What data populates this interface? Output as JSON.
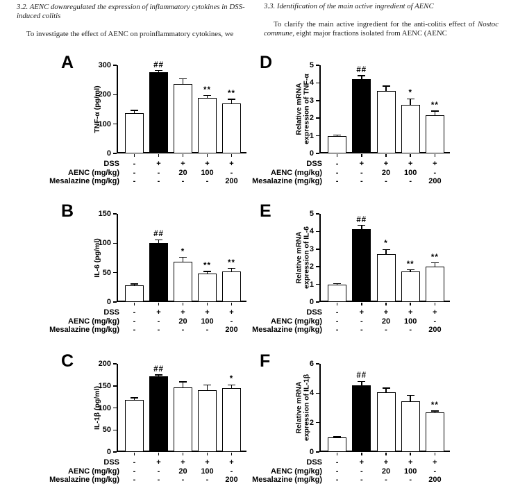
{
  "article": {
    "left": {
      "heading": "3.2.  AENC downregulated the expression of inflammatory cytokines in DSS-induced colitis",
      "paragraph": "To investigate the effect of AENC on proinflammatory cytokines, we"
    },
    "right": {
      "heading": "3.3.  Identification of the main active ingredient of AENC",
      "para_pre": "To clarify the main active ingredient for the anti-colitis effect of ",
      "para_italic": "Nostoc commune,",
      "para_post": " eight major fractions isolated from AENC (AENC"
    }
  },
  "figure": {
    "bar_fill_default": "#ffffff",
    "bar_fill_highlight": "#000000",
    "axis_color": "#000000",
    "group_rows_note": "rows of +/- and doses shown under every panel"
  },
  "chart_data": [
    {
      "panel": "A",
      "type": "bar",
      "ylabel_lines": [
        "TNF-α (pg/ml)"
      ],
      "ylim": [
        0,
        300
      ],
      "yticks": [
        0,
        100,
        200,
        300
      ],
      "values": [
        138,
        277,
        237,
        189,
        170
      ],
      "errors": [
        8,
        5,
        17,
        8,
        14
      ],
      "annotations": [
        "",
        "##",
        "",
        "**",
        "**"
      ],
      "filled": [
        false,
        true,
        false,
        false,
        false
      ],
      "x_rows": [
        {
          "label": "DSS",
          "cells": [
            "-",
            "+",
            "+",
            "+",
            "+"
          ]
        },
        {
          "label": "AENC (mg/kg)",
          "cells": [
            "-",
            "-",
            "20",
            "100",
            "-"
          ]
        },
        {
          "label": "Mesalazine (mg/kg)",
          "cells": [
            "-",
            "-",
            "-",
            "-",
            "200"
          ]
        }
      ]
    },
    {
      "panel": "D",
      "type": "bar",
      "ylabel_lines": [
        "Relative mRNA",
        "expression of TNF-α"
      ],
      "ylim": [
        0,
        5
      ],
      "yticks": [
        0,
        1,
        2,
        3,
        4,
        5
      ],
      "values": [
        1.0,
        4.2,
        3.55,
        2.75,
        2.15
      ],
      "errors": [
        0.05,
        0.2,
        0.27,
        0.35,
        0.25
      ],
      "annotations": [
        "",
        "##",
        "",
        "*",
        "**"
      ],
      "filled": [
        false,
        true,
        false,
        false,
        false
      ],
      "x_rows": [
        {
          "label": "DSS",
          "cells": [
            "-",
            "+",
            "+",
            "+",
            "+"
          ]
        },
        {
          "label": "AENC (mg/kg)",
          "cells": [
            "-",
            "-",
            "20",
            "100",
            "-"
          ]
        },
        {
          "label": "Mesalazine (mg/kg)",
          "cells": [
            "-",
            "-",
            "-",
            "-",
            "200"
          ]
        }
      ]
    },
    {
      "panel": "B",
      "type": "bar",
      "ylabel_lines": [
        "IL-6 (pg/ml)"
      ],
      "ylim": [
        0,
        150
      ],
      "yticks": [
        0,
        50,
        100,
        150
      ],
      "values": [
        28,
        100,
        68,
        48,
        52
      ],
      "errors": [
        3,
        6,
        8,
        4,
        5
      ],
      "annotations": [
        "",
        "##",
        "*",
        "**",
        "**"
      ],
      "filled": [
        false,
        true,
        false,
        false,
        false
      ],
      "x_rows": [
        {
          "label": "DSS",
          "cells": [
            "-",
            "+",
            "+",
            "+",
            "+"
          ]
        },
        {
          "label": "AENC (mg/kg)",
          "cells": [
            "-",
            "-",
            "20",
            "100",
            "-"
          ]
        },
        {
          "label": "Mesalazine (mg/kg)",
          "cells": [
            "-",
            "-",
            "-",
            "-",
            "200"
          ]
        }
      ]
    },
    {
      "panel": "E",
      "type": "bar",
      "ylabel_lines": [
        "Relative mRNA",
        "expression of IL-6"
      ],
      "ylim": [
        0,
        5
      ],
      "yticks": [
        0,
        1,
        2,
        3,
        4,
        5
      ],
      "values": [
        1.0,
        4.15,
        2.7,
        1.75,
        2.0
      ],
      "errors": [
        0.04,
        0.2,
        0.28,
        0.08,
        0.22
      ],
      "annotations": [
        "",
        "##",
        "*",
        "**",
        "**"
      ],
      "filled": [
        false,
        true,
        false,
        false,
        false
      ],
      "x_rows": [
        {
          "label": "DSS",
          "cells": [
            "-",
            "+",
            "+",
            "+",
            "+"
          ]
        },
        {
          "label": "AENC (mg/kg)",
          "cells": [
            "-",
            "-",
            "20",
            "100",
            "-"
          ]
        },
        {
          "label": "Mesalazine (mg/kg)",
          "cells": [
            "-",
            "-",
            "-",
            "-",
            "200"
          ]
        }
      ]
    },
    {
      "panel": "C",
      "type": "bar",
      "ylabel_lines": [
        "IL-1β (pg/ml)"
      ],
      "ylim": [
        0,
        200
      ],
      "yticks": [
        0,
        50,
        100,
        150,
        200
      ],
      "values": [
        118,
        172,
        147,
        140,
        145
      ],
      "errors": [
        5,
        3,
        12,
        12,
        7
      ],
      "annotations": [
        "",
        "##",
        "",
        "",
        "*"
      ],
      "filled": [
        false,
        true,
        false,
        false,
        false
      ],
      "x_rows": [
        {
          "label": "DSS",
          "cells": [
            "-",
            "+",
            "+",
            "+",
            "+"
          ]
        },
        {
          "label": "AENC (mg/kg)",
          "cells": [
            "-",
            "-",
            "20",
            "100",
            "-"
          ]
        },
        {
          "label": "Mesalazine (mg/kg)",
          "cells": [
            "-",
            "-",
            "-",
            "-",
            "200"
          ]
        }
      ]
    },
    {
      "panel": "F",
      "type": "bar",
      "ylabel_lines": [
        "Relative mRNA",
        "expression of IL-1β"
      ],
      "ylim": [
        0,
        6
      ],
      "yticks": [
        0,
        2,
        4,
        6
      ],
      "values": [
        1.0,
        4.55,
        4.05,
        3.45,
        2.7
      ],
      "errors": [
        0.04,
        0.25,
        0.3,
        0.4,
        0.08
      ],
      "annotations": [
        "",
        "##",
        "",
        "",
        "**"
      ],
      "filled": [
        false,
        true,
        false,
        false,
        false
      ],
      "x_rows": [
        {
          "label": "DSS",
          "cells": [
            "-",
            "+",
            "+",
            "+",
            "+"
          ]
        },
        {
          "label": "AENC (mg/kg)",
          "cells": [
            "-",
            "-",
            "20",
            "100",
            "-"
          ]
        },
        {
          "label": "Mesalazine (mg/kg)",
          "cells": [
            "-",
            "-",
            "-",
            "-",
            "200"
          ]
        }
      ]
    }
  ]
}
